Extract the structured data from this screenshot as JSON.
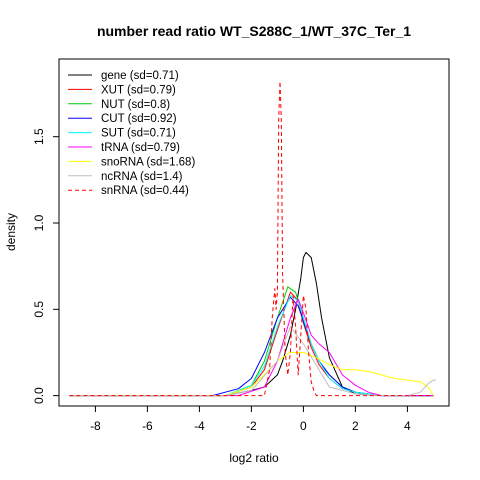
{
  "chart_data": {
    "type": "line",
    "title": "number read ratio WT_S288C_1/WT_37C_Ter_1",
    "xlabel": "log2 ratio",
    "ylabel": "density",
    "xlim": [
      -9.4,
      5.6
    ],
    "ylim": [
      -0.06,
      1.95
    ],
    "x_ticks": [
      -8,
      -6,
      -4,
      -2,
      0,
      2,
      4
    ],
    "y_ticks": [
      0.0,
      0.5,
      1.0,
      1.5
    ],
    "x_tick_labels": [
      "-8",
      "-6",
      "-4",
      "-2",
      "0",
      "2",
      "4"
    ],
    "y_tick_labels": [
      "0.0",
      "0.5",
      "1.0",
      "1.5"
    ],
    "grid": false,
    "legend_position": "top-left",
    "series": [
      {
        "name": "gene (sd=0.71)",
        "color": "#000000",
        "dash": "solid",
        "x": [
          -9.0,
          -3.0,
          -2.0,
          -1.5,
          -1.0,
          -0.8,
          -0.5,
          -0.3,
          -0.1,
          0.0,
          0.1,
          0.3,
          0.5,
          0.7,
          1.0,
          1.5,
          2.0,
          3.0,
          4.0,
          5.0
        ],
        "y": [
          0,
          0.0,
          0.03,
          0.05,
          0.12,
          0.2,
          0.35,
          0.5,
          0.68,
          0.8,
          0.83,
          0.8,
          0.65,
          0.45,
          0.22,
          0.05,
          0.01,
          0.0,
          0.0,
          0.0
        ]
      },
      {
        "name": "XUT (sd=0.79)",
        "color": "#ff0000",
        "dash": "solid",
        "x": [
          -9.0,
          -3.0,
          -2.0,
          -1.5,
          -1.0,
          -0.5,
          -0.2,
          0.0,
          0.3,
          0.6,
          1.0,
          1.5,
          2.0,
          3.0,
          4.0,
          5.0
        ],
        "y": [
          0,
          0.0,
          0.05,
          0.15,
          0.38,
          0.6,
          0.55,
          0.42,
          0.28,
          0.18,
          0.1,
          0.04,
          0.02,
          0.0,
          0.0,
          0.0
        ]
      },
      {
        "name": "NUT (sd=0.8)",
        "color": "#00cc00",
        "dash": "solid",
        "x": [
          -9.0,
          -3.0,
          -2.0,
          -1.5,
          -1.0,
          -0.6,
          -0.3,
          0.0,
          0.3,
          0.6,
          1.0,
          1.5,
          2.0,
          3.0,
          4.0,
          5.0
        ],
        "y": [
          0,
          0.0,
          0.06,
          0.2,
          0.45,
          0.63,
          0.6,
          0.45,
          0.3,
          0.2,
          0.12,
          0.05,
          0.02,
          0.0,
          0.0,
          0.0
        ]
      },
      {
        "name": "CUT (sd=0.92)",
        "color": "#0000ff",
        "dash": "solid",
        "x": [
          -9.0,
          -3.5,
          -2.5,
          -2.0,
          -1.5,
          -1.0,
          -0.5,
          -0.2,
          0.0,
          0.3,
          0.6,
          1.0,
          1.5,
          2.0,
          3.0,
          4.0,
          5.0
        ],
        "y": [
          0,
          0.0,
          0.04,
          0.1,
          0.25,
          0.45,
          0.57,
          0.52,
          0.43,
          0.3,
          0.2,
          0.12,
          0.05,
          0.02,
          0.0,
          0.0,
          0.0
        ]
      },
      {
        "name": "SUT (sd=0.71)",
        "color": "#00ffff",
        "dash": "solid",
        "x": [
          -9.0,
          -3.0,
          -2.0,
          -1.5,
          -1.0,
          -0.5,
          -0.2,
          0.0,
          0.3,
          0.6,
          1.0,
          1.5,
          2.0,
          3.0,
          4.0,
          5.0
        ],
        "y": [
          0,
          0.0,
          0.06,
          0.17,
          0.4,
          0.58,
          0.55,
          0.45,
          0.3,
          0.2,
          0.1,
          0.04,
          0.02,
          0.0,
          0.0,
          0.0
        ]
      },
      {
        "name": "tRNA (sd=0.79)",
        "color": "#ff00ff",
        "dash": "solid",
        "x": [
          -9.0,
          -2.5,
          -1.5,
          -1.0,
          -0.5,
          -0.2,
          0.0,
          0.3,
          0.6,
          1.0,
          1.5,
          2.0,
          2.5,
          3.0,
          4.0,
          5.0
        ],
        "y": [
          0,
          0.0,
          0.05,
          0.2,
          0.45,
          0.56,
          0.48,
          0.35,
          0.3,
          0.25,
          0.12,
          0.06,
          0.02,
          0.0,
          0.0,
          0.0
        ]
      },
      {
        "name": "snoRNA (sd=1.68)",
        "color": "#ffff00",
        "dash": "solid",
        "x": [
          -9.0,
          -3.0,
          -2.0,
          -1.5,
          -1.0,
          -0.5,
          0.0,
          0.5,
          1.0,
          1.5,
          2.0,
          2.5,
          3.0,
          3.5,
          4.0,
          4.5,
          4.8,
          5.0
        ],
        "y": [
          0,
          0.0,
          0.05,
          0.12,
          0.2,
          0.25,
          0.25,
          0.22,
          0.18,
          0.15,
          0.15,
          0.14,
          0.12,
          0.1,
          0.09,
          0.08,
          0.05,
          0.0
        ]
      },
      {
        "name": "ncRNA (sd=1.4)",
        "color": "#bebebe",
        "dash": "solid",
        "x": [
          -9.0,
          -3.0,
          -2.0,
          -1.0,
          -0.5,
          0.0,
          1.0,
          2.0,
          3.0,
          4.0,
          4.5,
          4.8,
          5.0,
          5.1
        ],
        "y": [
          0,
          0.0,
          0.03,
          0.2,
          0.4,
          0.3,
          0.05,
          0.01,
          0.0,
          0.0,
          0.02,
          0.07,
          0.09,
          0.09
        ]
      },
      {
        "name": "snRNA (sd=0.44)",
        "color": "#ff0000",
        "dash": "4,3",
        "x": [
          -9.0,
          -1.5,
          -1.3,
          -1.2,
          -1.1,
          -1.05,
          -1.0,
          -0.95,
          -0.9,
          -0.85,
          -0.8,
          -0.7,
          -0.6,
          -0.5,
          -0.4,
          -0.3,
          -0.2,
          -0.1,
          0.0,
          0.1,
          0.2,
          0.3,
          0.4,
          0.5,
          0.6,
          0.8,
          5.0
        ],
        "y": [
          0,
          0.0,
          0.15,
          0.45,
          0.62,
          0.5,
          0.6,
          1.6,
          1.82,
          1.6,
          0.7,
          0.25,
          0.12,
          0.25,
          0.58,
          0.4,
          0.12,
          0.35,
          0.58,
          0.5,
          0.25,
          0.08,
          0.03,
          0.0,
          0.0,
          0.0,
          0.0
        ]
      }
    ]
  }
}
